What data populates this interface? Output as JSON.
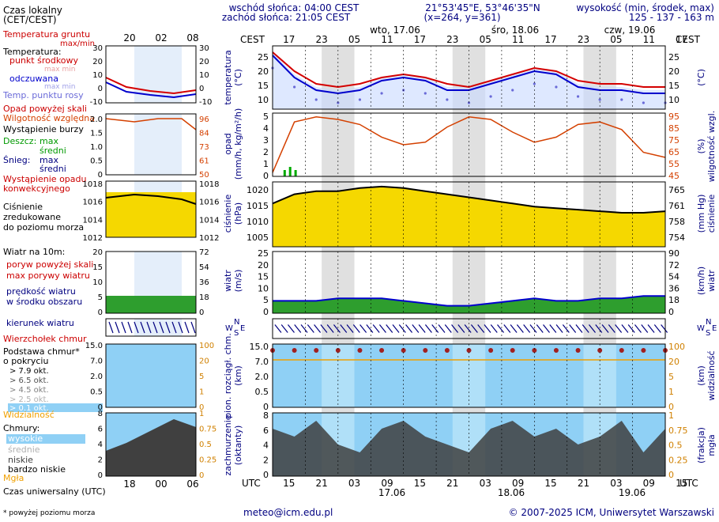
{
  "header": {
    "sunrise": "wschód słońca: 04:00 CEST",
    "sunset": "zachód słońca: 21:05 CEST",
    "coords": "21°53'45\"E, 53°46'35\"N",
    "grid": "(x=264, y=361)",
    "altitude_label": "wysokość (min, środek, max)",
    "altitude_values": "125 - 137 - 163 m",
    "days": [
      "wto, 17.06",
      "śro, 18.06",
      "czw, 19.06"
    ],
    "tz_top": "CEST",
    "tz_bottom": "UTC",
    "hours_top": [
      "17",
      "23",
      "05",
      "11",
      "17",
      "23",
      "05",
      "11",
      "17",
      "23",
      "05",
      "11",
      "17"
    ],
    "hours_bottom": [
      "15",
      "21",
      "03",
      "09",
      "15",
      "21",
      "03",
      "09",
      "15",
      "21",
      "03",
      "09",
      "15"
    ],
    "dates_bottom": [
      "17.06",
      "18.06",
      "19.06"
    ]
  },
  "legend": {
    "local_time": "Czas lokalny",
    "local_time_tz": "(CET/CEST)",
    "legend_hours_top": [
      "20",
      "02",
      "08"
    ],
    "legend_hours_bottom": [
      "18",
      "00",
      "06"
    ],
    "utc_time": "Czas uniwersalny (UTC)",
    "soil_temp": "Temperatura gruntu",
    "soil_temp_minmax": "max/min",
    "temperature": "Temperatura:",
    "temp_mid": "punkt środkowy",
    "temp_maxmin": "max min",
    "temp_felt": "odczuwana",
    "temp_felt_maxmin": "max min",
    "dew_point": "Temp. punktu rosy",
    "precip_above": "Opad powyżej skali",
    "humidity": "Wilgotność względna",
    "storm": "Wystąpienie burzy",
    "rain": "Deszcz:",
    "rain_max": "max",
    "rain_mid": "średni",
    "snow": "Śnieg:",
    "snow_max": "max",
    "snow_mid": "średni",
    "conv_precip_1": "Wystąpienie opadu",
    "conv_precip_2": "konwekcyjnego",
    "pressure_1": "Ciśnienie",
    "pressure_2": "zredukowane",
    "pressure_3": "do poziomu morza",
    "wind_10m": "Wiatr na 10m:",
    "gusts_above": "poryw powyżej skali",
    "gusts_max": "max porywy wiatru",
    "wind_speed_1": "prędkość wiatru",
    "wind_speed_2": "w środku obszaru",
    "wind_dir": "kierunek wiatru",
    "cloud_top": "Wierzchołek chmur",
    "cloud_base_1": "Podstawa chmur*",
    "cloud_base_2": "o pokryciu",
    "okt": [
      "> 7.9 okt.",
      "> 6.5 okt.",
      "> 4.5 okt.",
      "> 2.5 okt.",
      "> 0.1 okt."
    ],
    "visibility": "Widzialność",
    "clouds": "Chmury:",
    "clouds_high": "wysokie",
    "clouds_mid": "średnie",
    "clouds_low": "niskie",
    "clouds_vlow": "bardzo niskie",
    "fog": "Mgła",
    "footnote": "* powyżej poziomu morza",
    "leg_temp_ticks": [
      "30",
      "20",
      "10",
      "0",
      "-10"
    ],
    "leg_precip_ticks": [
      "2.0",
      "1.5",
      "1.0",
      "0.5",
      "0"
    ],
    "leg_hum_ticks": [
      "96",
      "84",
      "73",
      "61",
      "50"
    ],
    "leg_press_ticks": [
      "1018",
      "1016",
      "1014",
      "1012"
    ],
    "leg_wind_ticks": [
      "20",
      "15",
      "10",
      "5",
      "0"
    ],
    "leg_wind_kmh": [
      "72",
      "54",
      "36",
      "18",
      "0"
    ],
    "leg_base_ticks": [
      "15.0",
      "7.0",
      "2.0",
      "0.5",
      "0"
    ],
    "leg_vis_ticks": [
      "100",
      "20",
      "5",
      "1",
      "0"
    ],
    "leg_oct_ticks": [
      "8",
      "6",
      "4",
      "2",
      "0"
    ],
    "leg_frac_ticks": [
      "1",
      "0.75",
      "0.5",
      "0.25",
      "0"
    ]
  },
  "axes": {
    "temp": {
      "label": "temperatura",
      "unit": "(°C)",
      "ticks": [
        "25",
        "20",
        "15",
        "10"
      ]
    },
    "precip": {
      "label": "opad",
      "unit": "(mm/h, kg/m²/h)",
      "ticks": [
        "5",
        "4",
        "3",
        "2",
        "1",
        "0"
      ]
    },
    "humidity": {
      "label": "wilgotność wzgl.",
      "unit": "(%)",
      "ticks": [
        "95",
        "85",
        "75",
        "65",
        "55",
        "45"
      ]
    },
    "pressure": {
      "label": "ciśnienie",
      "unit": "(hPa)",
      "ticks": [
        "1020",
        "1015",
        "1010",
        "1005"
      ],
      "label_r": "ciśnienie",
      "unit_r": "(mm Hg)",
      "ticks_r": [
        "765",
        "761",
        "758",
        "754"
      ]
    },
    "wind": {
      "label": "wiatr",
      "unit": "(m/s)",
      "ticks": [
        "25",
        "20",
        "15",
        "10",
        "5",
        "0"
      ],
      "label_r": "wiatr",
      "unit_r": "(km/h)",
      "ticks_r": [
        "90",
        "72",
        "54",
        "36",
        "18",
        "0"
      ]
    },
    "base": {
      "label": "pion. rozciągł. chm.",
      "unit": "(km)",
      "ticks": [
        "15.0",
        "7.0",
        "2.0",
        "0.5",
        "0"
      ],
      "label_r": "widzialność",
      "unit_r": "(km)",
      "ticks_r": [
        "100",
        "20",
        "5",
        "1",
        "0"
      ]
    },
    "cloud": {
      "label": "zachmurzenie",
      "unit": "(oktanty)",
      "ticks": [
        "8",
        "6",
        "4",
        "2",
        "0"
      ],
      "label_r": "mgła",
      "unit_r": "(frakcja)",
      "ticks_r": [
        "1",
        "0.75",
        "0.5",
        "0.25",
        "0"
      ]
    },
    "wind_dir_letters": [
      "N",
      "W",
      "S",
      "E"
    ]
  },
  "colors": {
    "temp": "#d40000",
    "felt": "#0000cc",
    "dew": "#6a6ad8",
    "humidity": "#d44000",
    "pressure_fill": "#f5d800",
    "pressure_fill_hi": "#f0a000",
    "wind_fill": "#2e9e2e",
    "sky": "#8fd0f5",
    "night": "#e0e0e0",
    "visibility": "#f0a000",
    "cloud_dark": "#404040"
  },
  "chart_data": {
    "type": "line",
    "x_hours_utc": [
      12,
      16,
      20,
      24,
      28,
      32,
      36,
      40,
      44,
      48,
      52,
      56,
      60,
      64,
      68,
      72,
      76,
      80,
      84
    ],
    "series": [
      {
        "name": "temperatura",
        "values": [
          25,
          19,
          15,
          14,
          15,
          17,
          18,
          17,
          15,
          14,
          16,
          18,
          20,
          19,
          16,
          15,
          15,
          14,
          14
        ]
      },
      {
        "name": "odczuwana",
        "values": [
          24,
          17,
          13,
          12,
          13,
          16,
          17,
          16,
          13,
          13,
          15,
          17,
          19,
          18,
          14,
          13,
          13,
          12,
          12
        ]
      },
      {
        "name": "ciśnienie",
        "values": [
          1016,
          1019,
          1020,
          1020,
          1021,
          1021.5,
          1021,
          1020,
          1019,
          1018,
          1017,
          1016,
          1015,
          1014.5,
          1014,
          1013.5,
          1013,
          1013,
          1013.5
        ]
      },
      {
        "name": "wilgotność",
        "values": [
          48,
          88,
          92,
          90,
          86,
          76,
          70,
          72,
          84,
          92,
          90,
          80,
          72,
          76,
          86,
          88,
          82,
          64,
          60
        ]
      },
      {
        "name": "prędkość wiatru",
        "values": [
          5,
          5,
          5,
          6,
          6,
          6,
          5,
          4,
          3,
          3,
          4,
          5,
          6,
          5,
          5,
          6,
          6,
          7,
          7
        ]
      }
    ],
    "ylim_temp": [
      7,
      27
    ]
  },
  "footer": {
    "email": "meteo@icm.edu.pl",
    "copyright": "© 2007-2025 ICM, Uniwersytet Warszawski"
  }
}
